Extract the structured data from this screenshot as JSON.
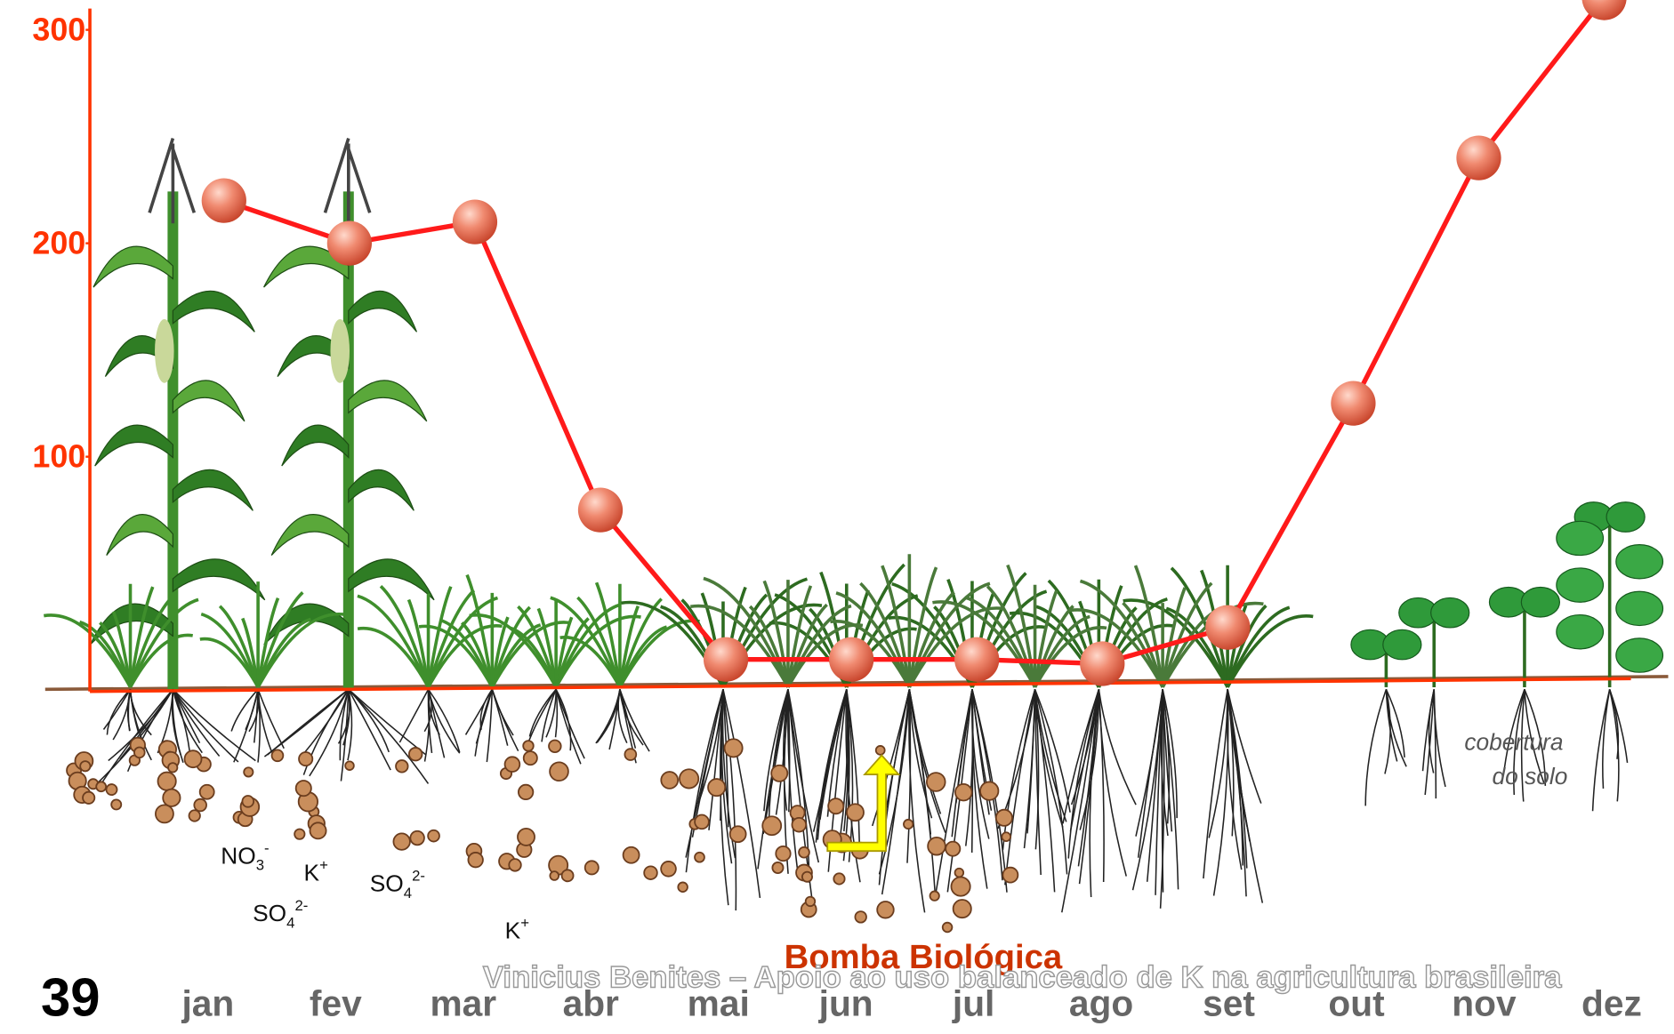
{
  "chart_data": {
    "type": "line",
    "categories": [
      "jan",
      "fev",
      "mar",
      "abr",
      "mai",
      "jun",
      "jul",
      "ago",
      "set",
      "out",
      "nov",
      "dez"
    ],
    "series": [
      {
        "name": "K",
        "color": "#ff1a1a",
        "values": [
          220,
          200,
          210,
          75,
          5,
          5,
          5,
          3,
          20,
          125,
          240,
          315
        ]
      }
    ],
    "ylim": [
      -10,
      310
    ],
    "yticks": [
      100,
      200,
      300
    ],
    "axis_color": "#ff3300",
    "annotations": {
      "slide_number": "39",
      "pump": "Bomba Biológica",
      "cover_1": "cobertura",
      "cover_2": "do solo",
      "footer": "Vinicius Benites – Apoio ao uso balanceado de K na agricultura brasileira",
      "ions": [
        {
          "base": "NO",
          "sub": "3",
          "sup": "-"
        },
        {
          "base": "K",
          "sup": "+"
        },
        {
          "base": "SO",
          "sub": "4",
          "sup": "2-"
        },
        {
          "base": "SO",
          "sub": "4",
          "sup": "2-"
        },
        {
          "base": "K",
          "sup": "+"
        }
      ]
    }
  }
}
